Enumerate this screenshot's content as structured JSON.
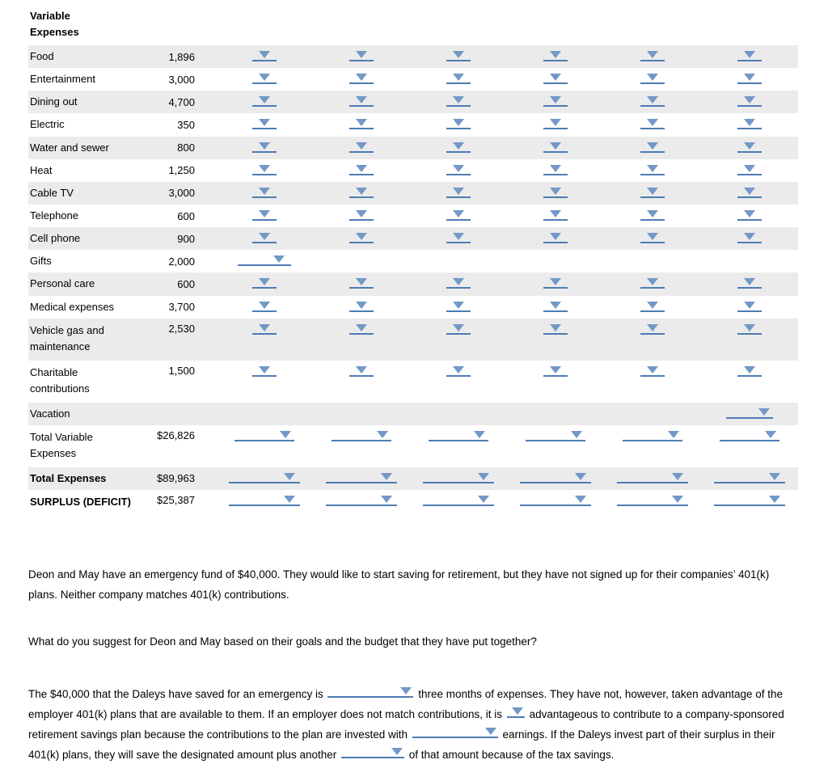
{
  "table": {
    "header": {
      "line1": "Variable",
      "line2": "Expenses"
    },
    "rows": [
      {
        "label": "Food",
        "amount": "1,896",
        "dd": "plain",
        "dd_cols": [
          1,
          2,
          3,
          4,
          5,
          6
        ]
      },
      {
        "label": "Entertainment",
        "amount": "3,000",
        "dd": "plain",
        "dd_cols": [
          1,
          2,
          3,
          4,
          5,
          6
        ]
      },
      {
        "label": "Dining out",
        "amount": "4,700",
        "dd": "plain",
        "dd_cols": [
          1,
          2,
          3,
          4,
          5,
          6
        ]
      },
      {
        "label": "Electric",
        "amount": "350",
        "dd": "plain",
        "dd_cols": [
          1,
          2,
          3,
          4,
          5,
          6
        ]
      },
      {
        "label": "Water and sewer",
        "amount": "800",
        "dd": "plain",
        "dd_cols": [
          1,
          2,
          3,
          4,
          5,
          6
        ]
      },
      {
        "label": "Heat",
        "amount": "1,250",
        "dd": "plain",
        "dd_cols": [
          1,
          2,
          3,
          4,
          5,
          6
        ]
      },
      {
        "label": "Cable TV",
        "amount": "3,000",
        "dd": "plain",
        "dd_cols": [
          1,
          2,
          3,
          4,
          5,
          6
        ]
      },
      {
        "label": "Telephone",
        "amount": "600",
        "dd": "plain",
        "dd_cols": [
          1,
          2,
          3,
          4,
          5,
          6
        ]
      },
      {
        "label": "Cell phone",
        "amount": "900",
        "dd": "plain",
        "dd_cols": [
          1,
          2,
          3,
          4,
          5,
          6
        ]
      },
      {
        "label": "Gifts",
        "amount": "2,000",
        "dd": "gift",
        "dd_cols": [
          1
        ]
      },
      {
        "label": "Personal care",
        "amount": "600",
        "dd": "plain",
        "dd_cols": [
          1,
          2,
          3,
          4,
          5,
          6
        ]
      },
      {
        "label": "Medical expenses",
        "amount": "3,700",
        "dd": "plain",
        "dd_cols": [
          1,
          2,
          3,
          4,
          5,
          6
        ]
      },
      {
        "label": "Vehicle gas and maintenance",
        "amount": "2,530",
        "dd": "plain",
        "dd_cols": [
          1,
          2,
          3,
          4,
          5,
          6
        ],
        "tall": true
      },
      {
        "label": "Charitable contributions",
        "amount": "1,500",
        "dd": "plain",
        "dd_cols": [
          1,
          2,
          3,
          4,
          5,
          6
        ],
        "tall": true
      },
      {
        "label": "Vacation",
        "amount": "",
        "dd": "vac",
        "dd_cols": [
          6
        ]
      },
      {
        "label": "Total Variable Expenses",
        "amount": "$26,826",
        "dd": "wide",
        "dd_cols": [
          1,
          2,
          3,
          4,
          5,
          6
        ],
        "tall": true
      },
      {
        "label": "Total Expenses",
        "amount": "$89,963",
        "dd": "xwide",
        "dd_cols": [
          1,
          2,
          3,
          4,
          5,
          6
        ],
        "bold": true
      },
      {
        "label": "SURPLUS (DEFICIT)",
        "amount": "$25,387",
        "dd": "xwide",
        "dd_cols": [
          1,
          2,
          3,
          4,
          5,
          6
        ],
        "bold": true,
        "tall": true
      }
    ]
  },
  "paragraphs": {
    "p1": "Deon and May have an emergency fund of $40,000. They would like to start saving for retirement, but they have not signed up for their companies’ 401(k) plans. Neither company matches 401(k) contributions.",
    "p2": "What do you suggest for Deon and May based on their goals and the budget that they have put together?",
    "p3_segments": [
      {
        "text": "The $40,000 that the Daleys have saved for an emergency is "
      },
      {
        "dropdown": "inline-wide"
      },
      {
        "text": " three months of expenses. They have not, however, taken advantage of the employer 401(k) plans that are available to them. If an employer does not match contributions, it is "
      },
      {
        "dropdown": "inline-small"
      },
      {
        "text": " advantageous to contribute to a company-sponsored retirement savings plan because the contributions to the plan are invested with "
      },
      {
        "dropdown": "inline-wide"
      },
      {
        "text": " earnings. If the Daleys invest part of their surplus in their 401(k) plans, they will save the designated amount plus another "
      },
      {
        "dropdown": "inline-medium"
      },
      {
        "text": " of that amount because of the tax savings."
      }
    ]
  },
  "colors": {
    "triangle": "#7398c7",
    "underline": "#4d7cb3",
    "row_stripe": "#ebebeb"
  }
}
